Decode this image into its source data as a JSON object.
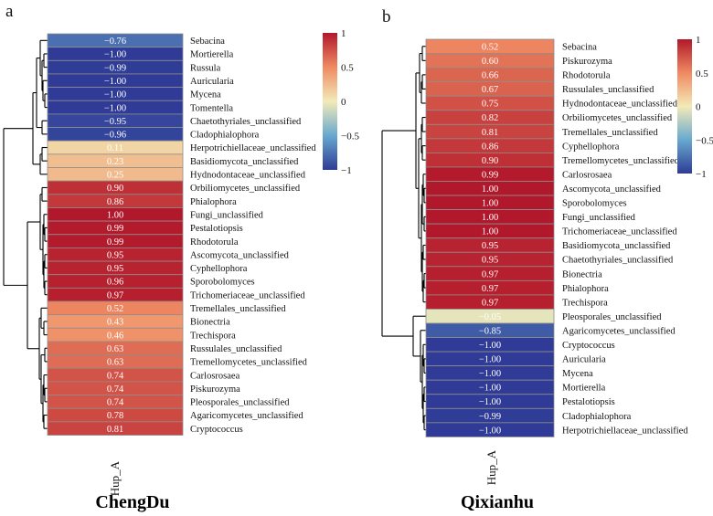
{
  "chart_data": [
    {
      "type": "heatmap",
      "panel": "a",
      "title": "ChengDu",
      "column": "Hup_A",
      "value_range": [
        -1,
        1
      ],
      "colorbar_ticks": [
        "1",
        "0.5",
        "0",
        "−0.5",
        "−1"
      ],
      "rows": [
        {
          "label": "Sebacina",
          "value": -0.76,
          "text": "−0.76"
        },
        {
          "label": "Mortierella",
          "value": -1.0,
          "text": "−1.00"
        },
        {
          "label": "Russula",
          "value": -0.99,
          "text": "−0.99"
        },
        {
          "label": "Auricularia",
          "value": -1.0,
          "text": "−1.00"
        },
        {
          "label": "Mycena",
          "value": -1.0,
          "text": "−1.00"
        },
        {
          "label": "Tomentella",
          "value": -1.0,
          "text": "−1.00"
        },
        {
          "label": "Chaetothyriales_unclassified",
          "value": -0.95,
          "text": "−0.95"
        },
        {
          "label": "Cladophialophora",
          "value": -0.96,
          "text": "−0.96"
        },
        {
          "label": "Herpotrichiellaceae_unclassified",
          "value": 0.11,
          "text": "0.11"
        },
        {
          "label": "Basidiomycota_unclassified",
          "value": 0.23,
          "text": "0.23"
        },
        {
          "label": "Hydnodontaceae_unclassified",
          "value": 0.25,
          "text": "0.25"
        },
        {
          "label": "Orbiliomycetes_unclassified",
          "value": 0.9,
          "text": "0.90"
        },
        {
          "label": "Phialophora",
          "value": 0.86,
          "text": "0.86"
        },
        {
          "label": "Fungi_unclassified",
          "value": 1.0,
          "text": "1.00"
        },
        {
          "label": "Pestalotiopsis",
          "value": 0.99,
          "text": "0.99"
        },
        {
          "label": "Rhodotorula",
          "value": 0.99,
          "text": "0.99"
        },
        {
          "label": "Ascomycota_unclassified",
          "value": 0.95,
          "text": "0.95"
        },
        {
          "label": "Cyphellophora",
          "value": 0.95,
          "text": "0.95"
        },
        {
          "label": "Sporobolomyces",
          "value": 0.96,
          "text": "0.96"
        },
        {
          "label": "Trichomeriaceae_unclassified",
          "value": 0.97,
          "text": "0.97"
        },
        {
          "label": "Tremellales_unclassified",
          "value": 0.52,
          "text": "0.52"
        },
        {
          "label": "Bionectria",
          "value": 0.43,
          "text": "0.43"
        },
        {
          "label": "Trechispora",
          "value": 0.46,
          "text": "0.46"
        },
        {
          "label": "Russulales_unclassified",
          "value": 0.63,
          "text": "0.63"
        },
        {
          "label": "Tremellomycetes_unclassified",
          "value": 0.63,
          "text": "0.63"
        },
        {
          "label": "Carlosrosaea",
          "value": 0.74,
          "text": "0.74"
        },
        {
          "label": "Piskurozyma",
          "value": 0.74,
          "text": "0.74"
        },
        {
          "label": "Pleosporales_unclassified",
          "value": 0.74,
          "text": "0.74"
        },
        {
          "label": "Agaricomycetes_unclassified",
          "value": 0.78,
          "text": "0.78"
        },
        {
          "label": "Cryptococcus",
          "value": 0.81,
          "text": "0.81"
        }
      ]
    },
    {
      "type": "heatmap",
      "panel": "b",
      "title": "Qixianhu",
      "column": "Hup_A",
      "value_range": [
        -1,
        1
      ],
      "colorbar_ticks": [
        "1",
        "0.5",
        "0",
        "−0.5",
        "−1"
      ],
      "rows": [
        {
          "label": "Sebacina",
          "value": 0.52,
          "text": "0.52"
        },
        {
          "label": "Piskurozyma",
          "value": 0.6,
          "text": "0.60"
        },
        {
          "label": "Rhodotorula",
          "value": 0.66,
          "text": "0.66"
        },
        {
          "label": "Russulales_unclassified",
          "value": 0.67,
          "text": "0.67"
        },
        {
          "label": "Hydnodontaceae_unclassified",
          "value": 0.75,
          "text": "0.75"
        },
        {
          "label": "Orbiliomycetes_unclassified",
          "value": 0.82,
          "text": "0.82"
        },
        {
          "label": "Tremellales_unclassified",
          "value": 0.81,
          "text": "0.81"
        },
        {
          "label": "Cyphellophora",
          "value": 0.86,
          "text": "0.86"
        },
        {
          "label": "Tremellomycetes_unclassified",
          "value": 0.9,
          "text": "0.90"
        },
        {
          "label": "Carlosrosaea",
          "value": 0.99,
          "text": "0.99"
        },
        {
          "label": "Ascomycota_unclassified",
          "value": 1.0,
          "text": "1.00"
        },
        {
          "label": "Sporobolomyces",
          "value": 1.0,
          "text": "1.00"
        },
        {
          "label": "Fungi_unclassified",
          "value": 1.0,
          "text": "1.00"
        },
        {
          "label": "Trichomeriaceae_unclassified",
          "value": 1.0,
          "text": "1.00"
        },
        {
          "label": "Basidiomycota_unclassified",
          "value": 0.95,
          "text": "0.95"
        },
        {
          "label": "Chaetothyriales_unclassified",
          "value": 0.95,
          "text": "0.95"
        },
        {
          "label": "Bionectria",
          "value": 0.97,
          "text": "0.97"
        },
        {
          "label": "Phialophora",
          "value": 0.97,
          "text": "0.97"
        },
        {
          "label": "Trechispora",
          "value": 0.97,
          "text": "0.97"
        },
        {
          "label": "Pleosporales_unclassified",
          "value": -0.05,
          "text": "−0.05"
        },
        {
          "label": "Agaricomycetes_unclassified",
          "value": -0.85,
          "text": "−0.85"
        },
        {
          "label": "Cryptococcus",
          "value": -1.0,
          "text": "−1.00"
        },
        {
          "label": "Auricularia",
          "value": -1.0,
          "text": "−1.00"
        },
        {
          "label": "Mycena",
          "value": -1.0,
          "text": "−1.00"
        },
        {
          "label": "Mortierella",
          "value": -1.0,
          "text": "−1.00"
        },
        {
          "label": "Pestalotiopsis",
          "value": -1.0,
          "text": "−1.00"
        },
        {
          "label": "Cladophialophora",
          "value": -0.99,
          "text": "−0.99"
        },
        {
          "label": "Herpotrichiellaceae_unclassified",
          "value": -1.0,
          "text": "−1.00"
        }
      ]
    }
  ],
  "colors": {
    "high": "#b2182b",
    "mid_high": "#ef8a62",
    "mid": "#f3eab8",
    "mid_low": "#67a9cf",
    "low": "#2f3b96",
    "cell_border": "#8e8e8e"
  }
}
